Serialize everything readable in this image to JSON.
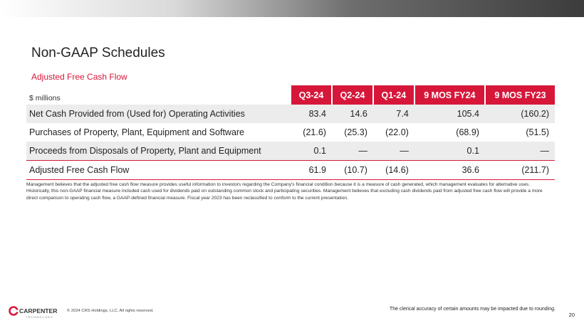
{
  "title": "Non-GAAP Schedules",
  "subtitle": "Adjusted Free Cash Flow",
  "table": {
    "unit_label": "$ millions",
    "columns": [
      "Q3-24",
      "Q2-24",
      "Q1-24",
      "9 MOS FY24",
      "9 MOS FY23"
    ],
    "rows": [
      {
        "label": "Net Cash Provided from (Used for) Operating Activities",
        "values": [
          "83.4",
          "14.6",
          "7.4",
          "105.4",
          "(160.2)"
        ]
      },
      {
        "label": "Purchases of Property, Plant, Equipment and Software",
        "values": [
          "(21.6)",
          "(25.3)",
          "(22.0)",
          "(68.9)",
          "(51.5)"
        ]
      },
      {
        "label": "Proceeds from Disposals of Property, Plant and Equipment",
        "values": [
          "0.1",
          "—",
          "—",
          "0.1",
          "—"
        ]
      },
      {
        "label": "Adjusted Free Cash Flow",
        "values": [
          "61.9",
          "(10.7)",
          "(14.6)",
          "36.6",
          "(211.7)"
        ]
      }
    ]
  },
  "footnote": "Management believes that the adjusted free cash flow measure provides useful information to investors regarding the Company's financial condition because it is a measure of cash generated, which management evaluates for alternative uses. Historically, this non-GAAP financial measure included cash used for dividends paid on outstanding common stock and participating securities. Management believes that excluding cash dividends paid from adjusted free cash flow will provide a more direct comparison to operating cash flow, a GAAP-defined financial measure. Fiscal year 2023 has been reclassified to conform to the current presentation.",
  "footer": {
    "logo_text": "CARPENTER",
    "logo_subtext": "TECHNOLOGY",
    "copyright": "© 2024 CRS Holdings, LLC. All rights reserved.",
    "rounding_note": "The clerical accuracy of certain amounts may be impacted due to rounding.",
    "page_number": "20"
  },
  "colors": {
    "accent": "#d6173a",
    "shade": "#ececec"
  }
}
